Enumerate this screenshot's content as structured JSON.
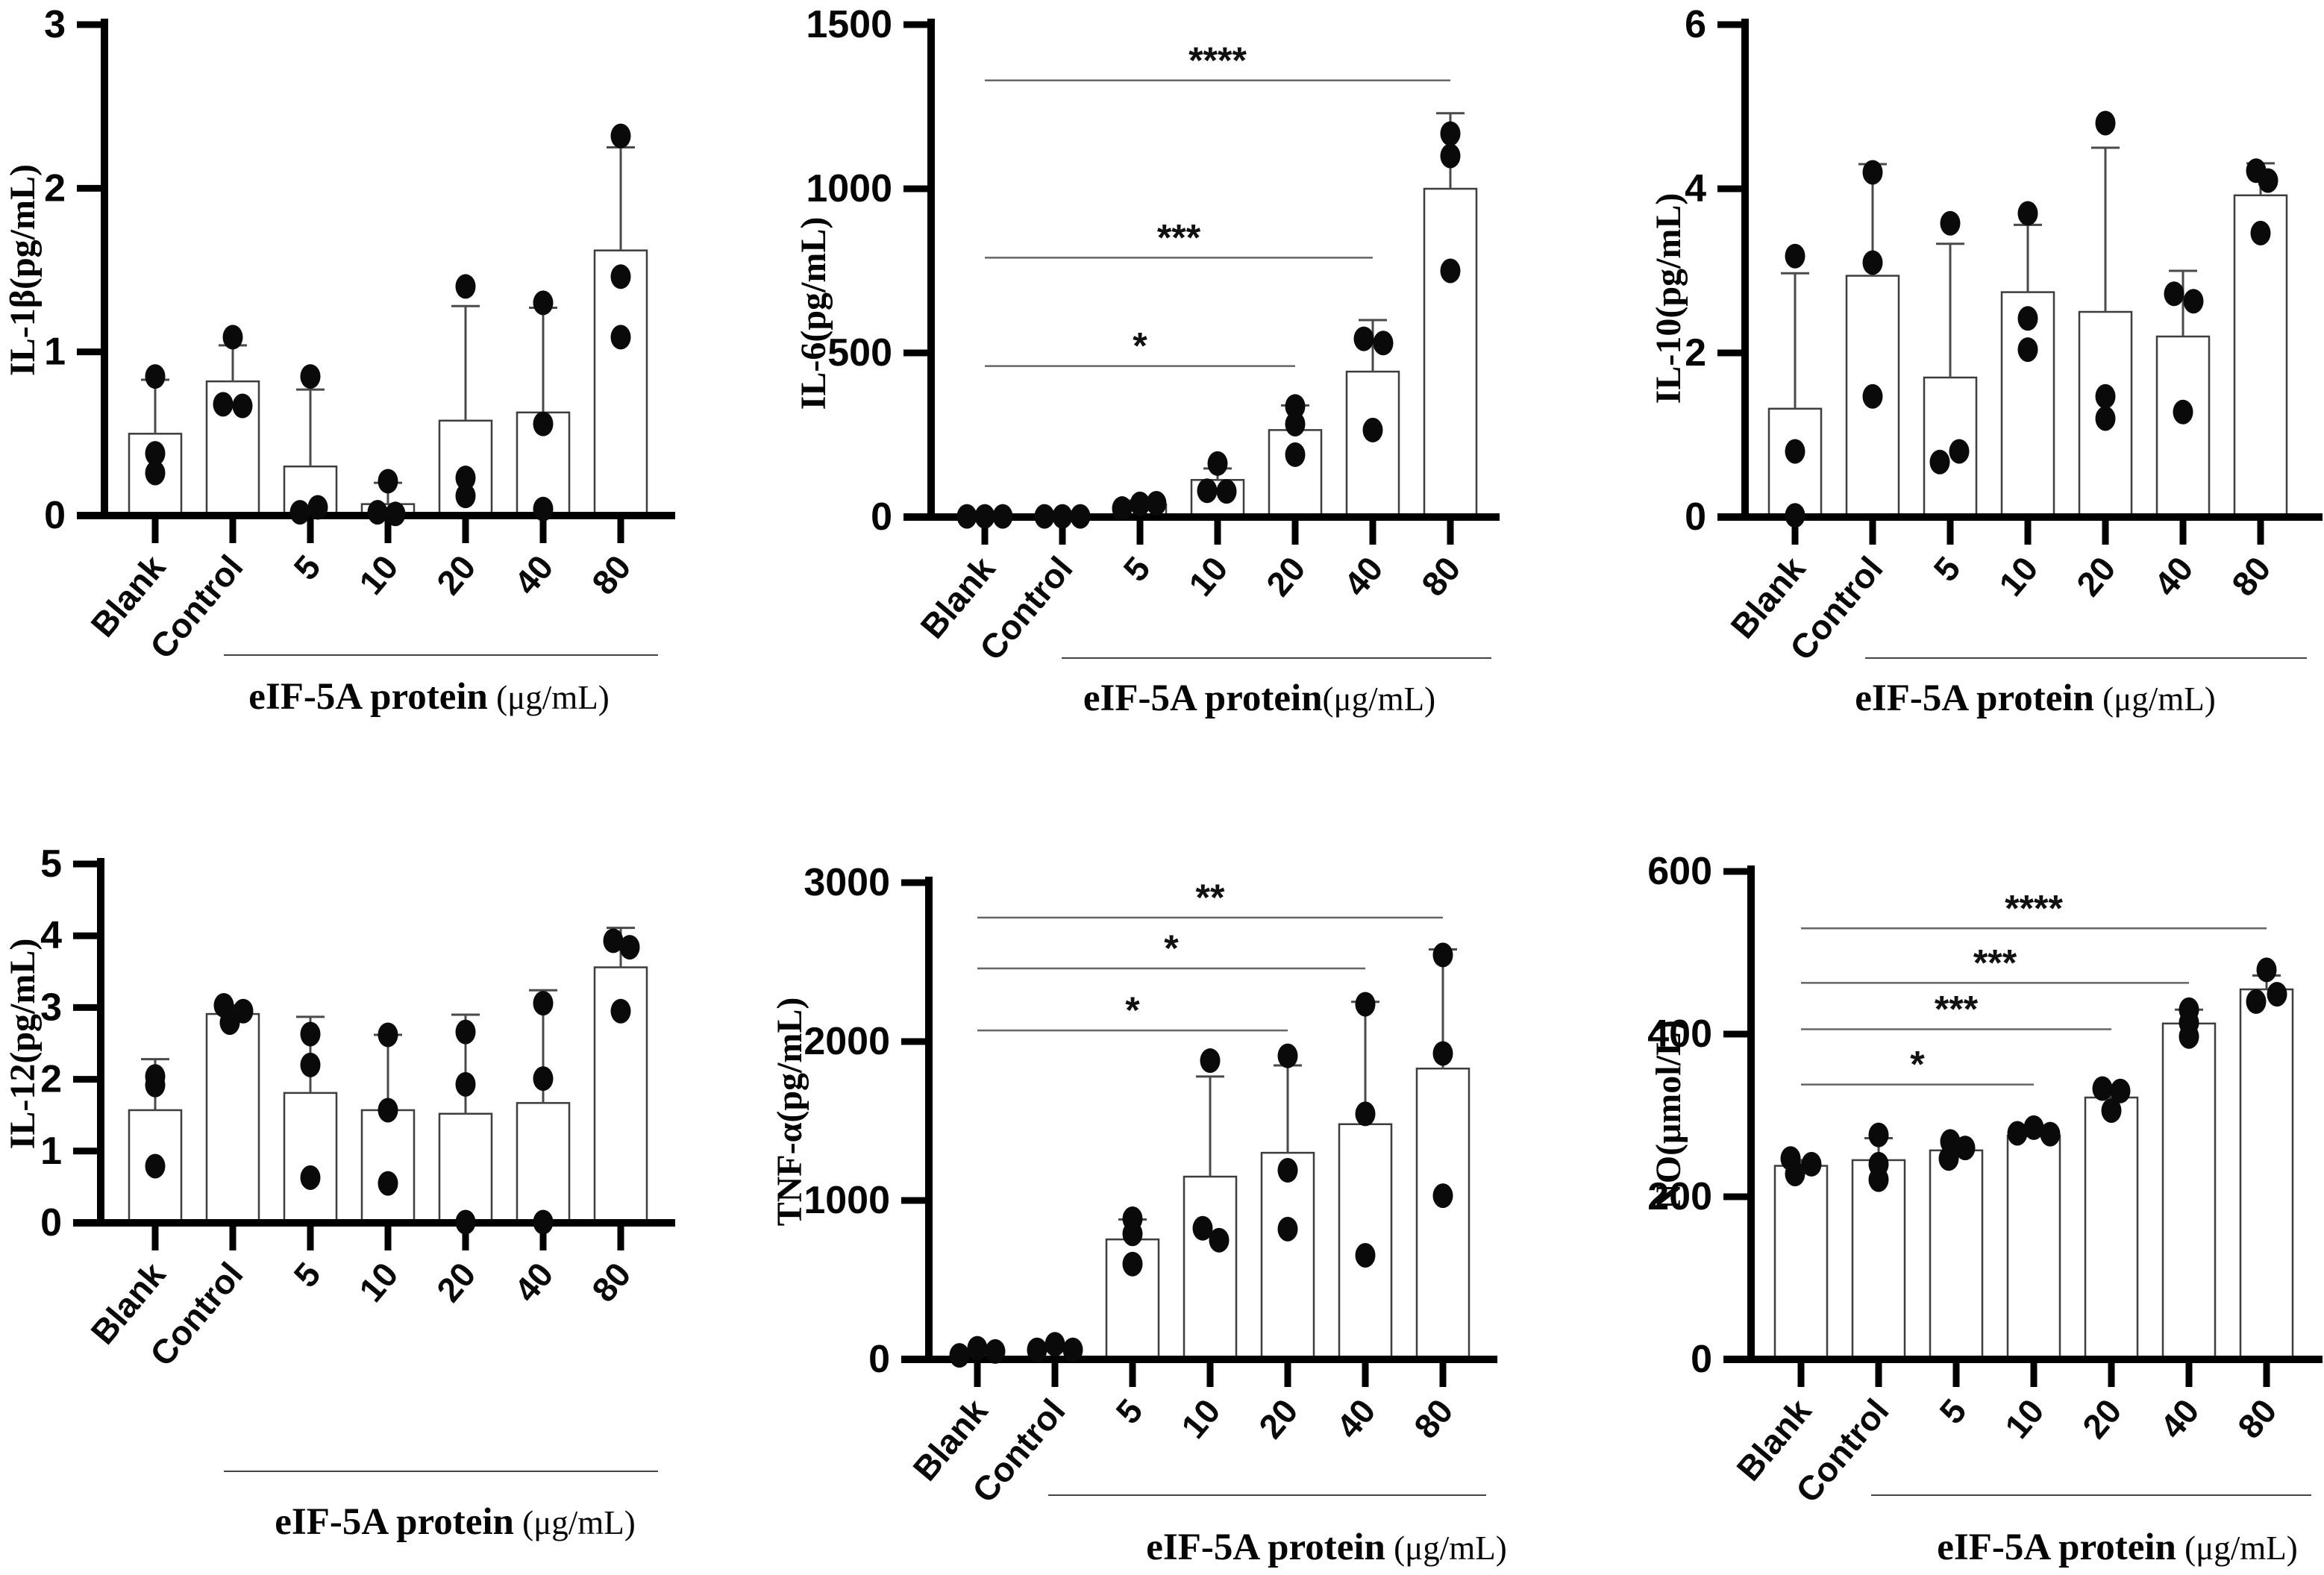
{
  "figure": {
    "description": "Six bar charts of inflammatory mediator levels after stimulation with eIF-5A protein doses",
    "background_color": "#ffffff",
    "bar_fill": "#ffffff",
    "bar_stroke": "#3d3d3d",
    "point_color": "#0a0a0a",
    "axis_color": "#000000",
    "sig_line_color": "#666666"
  },
  "chart_data": [
    {
      "id": "il-1b",
      "type": "bar",
      "title": "",
      "ylabel": "IL-1β(pg/mL)",
      "xlabel_bold": "eIF-5A protein",
      "xlabel_unit": " (μg/mL)",
      "ylim": [
        0,
        3
      ],
      "yticks": [
        0,
        1,
        2,
        3
      ],
      "categories": [
        "Blank",
        "Control",
        "5",
        "10",
        "20",
        "40",
        "80"
      ],
      "values": [
        0.5,
        0.82,
        0.3,
        0.07,
        0.58,
        0.63,
        1.62
      ],
      "error_top": [
        0.83,
        1.04,
        0.77,
        0.2,
        1.28,
        1.27,
        2.25
      ],
      "points": [
        [
          0.85,
          0.38,
          0.26
        ],
        [
          1.09,
          0.68,
          0.67
        ],
        [
          0.85,
          0.05,
          0.02
        ],
        [
          0.21,
          0.02,
          0.01
        ],
        [
          1.4,
          0.23,
          0.12
        ],
        [
          1.3,
          0.56,
          0.04
        ],
        [
          2.32,
          1.46,
          1.09
        ]
      ],
      "point_dx": [
        [
          0,
          0,
          0
        ],
        [
          0,
          -13,
          13
        ],
        [
          0,
          10,
          -14
        ],
        [
          0,
          -14,
          10
        ],
        [
          0,
          0,
          0
        ],
        [
          0,
          0,
          0
        ],
        [
          0,
          0,
          0
        ]
      ],
      "significance": []
    },
    {
      "id": "il-6",
      "type": "bar",
      "title": "",
      "ylabel": "IL-6(pg/mL)",
      "xlabel_bold": "eIF-5A protein",
      "xlabel_unit": "(μg/mL)",
      "ylim": [
        0,
        1500
      ],
      "yticks": [
        0,
        500,
        1000,
        1500
      ],
      "categories": [
        "Blank",
        "Control",
        "5",
        "10",
        "20",
        "40",
        "80"
      ],
      "values": [
        4,
        5,
        38,
        113,
        265,
        443,
        1000
      ],
      "error_top": [
        6,
        7,
        50,
        148,
        340,
        600,
        1230
      ],
      "points": [
        [
          2,
          2,
          2
        ],
        [
          2,
          2,
          2
        ],
        [
          26,
          40,
          42
        ],
        [
          163,
          80,
          78
        ],
        [
          337,
          283,
          190
        ],
        [
          543,
          530,
          265
        ],
        [
          1168,
          1100,
          750
        ]
      ],
      "point_dx": [
        [
          -24,
          0,
          24
        ],
        [
          -24,
          0,
          24
        ],
        [
          -24,
          0,
          22
        ],
        [
          0,
          -14,
          12
        ],
        [
          0,
          0,
          0
        ],
        [
          -12,
          14,
          0
        ],
        [
          0,
          0,
          0
        ]
      ],
      "significance": [
        {
          "from": 0,
          "to": 4,
          "label": "*",
          "y": 460
        },
        {
          "from": 0,
          "to": 5,
          "label": "***",
          "y": 790
        },
        {
          "from": 0,
          "to": 6,
          "label": "****",
          "y": 1330
        }
      ]
    },
    {
      "id": "il-10",
      "type": "bar",
      "title": "",
      "ylabel": "IL-10(pg/mL)",
      "xlabel_bold": "eIF-5A protein",
      "xlabel_unit": " (μg/mL)",
      "ylim": [
        0,
        6
      ],
      "yticks": [
        0,
        2,
        4,
        6
      ],
      "categories": [
        "Blank",
        "Control",
        "5",
        "10",
        "20",
        "40",
        "80"
      ],
      "values": [
        1.32,
        2.94,
        1.7,
        2.74,
        2.5,
        2.2,
        3.92
      ],
      "error_top": [
        2.97,
        4.3,
        3.33,
        3.56,
        4.5,
        3.0,
        4.31
      ],
      "points": [
        [
          3.18,
          0.8,
          0.02
        ],
        [
          4.2,
          3.1,
          1.47
        ],
        [
          3.58,
          0.67,
          0.8
        ],
        [
          3.7,
          2.42,
          2.04
        ],
        [
          4.8,
          1.47,
          1.2
        ],
        [
          2.72,
          2.63,
          1.28
        ],
        [
          4.22,
          4.1,
          3.46
        ]
      ],
      "point_dx": [
        [
          0,
          0,
          0
        ],
        [
          0,
          0,
          0
        ],
        [
          0,
          -14,
          12
        ],
        [
          0,
          0,
          0
        ],
        [
          0,
          0,
          0
        ],
        [
          -12,
          14,
          0
        ],
        [
          -6,
          10,
          0
        ]
      ],
      "significance": []
    },
    {
      "id": "il-12",
      "type": "bar",
      "title": "",
      "ylabel": "IL-12(pg/mL)",
      "xlabel_bold": "eIF-5A protein",
      "xlabel_unit": " (μg/mL)",
      "ylim": [
        0,
        5
      ],
      "yticks": [
        0,
        1,
        2,
        3,
        4,
        5
      ],
      "categories": [
        "Blank",
        "Control",
        "5",
        "10",
        "20",
        "40",
        "80"
      ],
      "values": [
        1.57,
        2.91,
        1.81,
        1.57,
        1.52,
        1.67,
        3.56
      ],
      "error_top": [
        2.28,
        3.03,
        2.87,
        2.62,
        2.9,
        3.24,
        4.11
      ],
      "points": [
        [
          2.04,
          1.92,
          0.79
        ],
        [
          3.03,
          2.95,
          2.79
        ],
        [
          2.63,
          2.2,
          0.63
        ],
        [
          2.62,
          1.57,
          0.55
        ],
        [
          2.66,
          1.93,
          0.01
        ],
        [
          3.06,
          2.01,
          0.01
        ],
        [
          3.93,
          3.84,
          2.95
        ]
      ],
      "point_dx": [
        [
          0,
          0,
          0
        ],
        [
          -12,
          14,
          -4
        ],
        [
          0,
          0,
          0
        ],
        [
          0,
          0,
          0
        ],
        [
          0,
          0,
          0
        ],
        [
          0,
          0,
          0
        ],
        [
          -10,
          12,
          0
        ]
      ],
      "significance": []
    },
    {
      "id": "tnf-a",
      "type": "bar",
      "title": "",
      "ylabel": "TNF-α(pg/mL)",
      "xlabel_bold": "eIF-5A protein",
      "xlabel_unit": " (μg/mL)",
      "ylim": [
        0,
        3000
      ],
      "yticks": [
        0,
        1000,
        2000,
        3000
      ],
      "categories": [
        "Blank",
        "Control",
        "5",
        "10",
        "20",
        "40",
        "80"
      ],
      "values": [
        45,
        65,
        755,
        1150,
        1300,
        1480,
        1830
      ],
      "error_top": [
        60,
        90,
        880,
        1780,
        1850,
        2250,
        2580
      ],
      "points": [
        [
          25,
          70,
          50
        ],
        [
          60,
          95,
          60
        ],
        [
          885,
          790,
          600
        ],
        [
          1880,
          825,
          750
        ],
        [
          1910,
          1190,
          820
        ],
        [
          2235,
          1545,
          655
        ],
        [
          2545,
          1925,
          1030
        ]
      ],
      "point_dx": [
        [
          -24,
          0,
          24
        ],
        [
          -24,
          0,
          24
        ],
        [
          0,
          0,
          0
        ],
        [
          0,
          -10,
          12
        ],
        [
          0,
          0,
          0
        ],
        [
          0,
          0,
          0
        ],
        [
          0,
          0,
          0
        ]
      ],
      "significance": [
        {
          "from": 0,
          "to": 4,
          "label": "*",
          "y": 2070
        },
        {
          "from": 0,
          "to": 5,
          "label": "*",
          "y": 2460
        },
        {
          "from": 0,
          "to": 6,
          "label": "**",
          "y": 2780
        }
      ]
    },
    {
      "id": "no",
      "type": "bar",
      "title": "",
      "ylabel": "NO(μmol/L)",
      "xlabel_bold": "eIF-5A protein",
      "xlabel_unit": " (μg/mL)",
      "ylim": [
        0,
        600
      ],
      "yticks": [
        0,
        200,
        400,
        600
      ],
      "categories": [
        "Blank",
        "Control",
        "5",
        "10",
        "20",
        "40",
        "80"
      ],
      "values": [
        238,
        245,
        257,
        275,
        322,
        413,
        455
      ],
      "error_top": [
        245,
        272,
        266,
        281,
        336,
        430,
        472
      ],
      "points": [
        [
          247,
          240,
          228
        ],
        [
          276,
          240,
          221
        ],
        [
          268,
          260,
          247
        ],
        [
          285,
          278,
          277
        ],
        [
          333,
          330,
          306
        ],
        [
          430,
          414,
          397
        ],
        [
          479,
          449,
          440
        ]
      ],
      "point_dx": [
        [
          -14,
          14,
          -8
        ],
        [
          0,
          0,
          0
        ],
        [
          -8,
          12,
          -10
        ],
        [
          0,
          -22,
          22
        ],
        [
          -12,
          12,
          0
        ],
        [
          0,
          0,
          0
        ],
        [
          0,
          14,
          -14
        ]
      ],
      "significance": [
        {
          "from": 0,
          "to": 3,
          "label": "*",
          "y": 338
        },
        {
          "from": 0,
          "to": 4,
          "label": "***",
          "y": 406
        },
        {
          "from": 0,
          "to": 5,
          "label": "***",
          "y": 463
        },
        {
          "from": 0,
          "to": 6,
          "label": "****",
          "y": 530
        }
      ]
    }
  ]
}
